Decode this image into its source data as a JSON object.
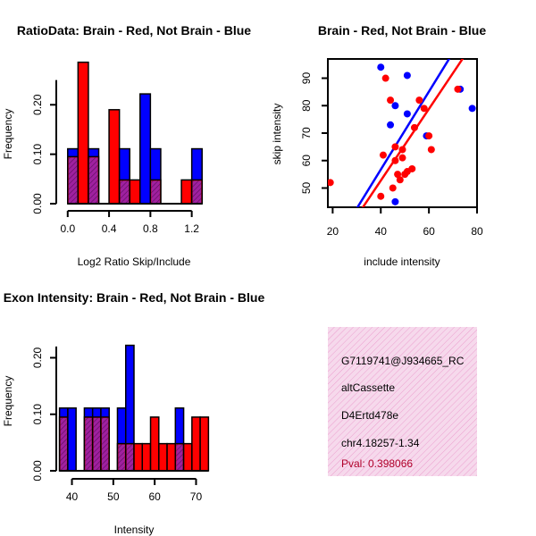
{
  "colors": {
    "red": "#ff0000",
    "blue": "#0000ff",
    "purple": "#a020a0",
    "info_bg": "#f6d9ec",
    "info_hatch": "#ec9fcf",
    "pval": "#b0002a"
  },
  "chart_data": [
    {
      "type": "bar",
      "title": "RatioData: Brain - Red, Not Brain - Blue",
      "xlabel": "Log2 Ratio Skip/Include",
      "ylabel": "Frequency",
      "xlim": [
        -0.05,
        1.35
      ],
      "ylim": [
        0,
        0.28
      ],
      "xticks": [
        0.0,
        0.4,
        0.8,
        1.2
      ],
      "xtick_labels": [
        "0.0",
        "0.4",
        "0.8",
        "1.2"
      ],
      "yticks": [
        0.0,
        0.1,
        0.2
      ],
      "ytick_labels": [
        "0.00",
        "0.10",
        "0.20"
      ],
      "bin_edges": [
        0.0,
        0.1,
        0.2,
        0.3,
        0.4,
        0.5,
        0.6,
        0.7,
        0.8,
        0.9,
        1.0,
        1.1,
        1.2,
        1.3
      ],
      "series": [
        {
          "name": "Not Brain",
          "color": "blue",
          "values": [
            0.111,
            0.0,
            0.111,
            0.0,
            0.0,
            0.111,
            0.0,
            0.222,
            0.111,
            0.0,
            0.0,
            0.0,
            0.111
          ]
        },
        {
          "name": "Brain",
          "color": "red",
          "values": [
            0.095,
            0.286,
            0.095,
            0.0,
            0.19,
            0.048,
            0.048,
            0.0,
            0.048,
            0.0,
            0.0,
            0.048,
            0.048
          ]
        }
      ]
    },
    {
      "type": "scatter",
      "title": "Brain - Red, Not Brain - Blue",
      "xlabel": "include intensity",
      "ylabel": "skip intensity",
      "xlim": [
        18,
        80
      ],
      "ylim": [
        43,
        97
      ],
      "xticks": [
        20,
        40,
        60,
        80
      ],
      "xtick_labels": [
        "20",
        "40",
        "60",
        "80"
      ],
      "yticks": [
        50,
        60,
        70,
        80,
        90
      ],
      "ytick_labels": [
        "50",
        "60",
        "70",
        "80",
        "90"
      ],
      "series": [
        {
          "name": "Not Brain",
          "color": "blue",
          "points": [
            [
              40,
              94
            ],
            [
              51,
              91
            ],
            [
              46,
              80
            ],
            [
              51,
              77
            ],
            [
              44,
              73
            ],
            [
              59,
              69
            ],
            [
              73,
              86
            ],
            [
              78,
              79
            ],
            [
              46,
              45
            ]
          ]
        },
        {
          "name": "Brain",
          "color": "red",
          "points": [
            [
              19,
              52
            ],
            [
              40,
              47
            ],
            [
              45,
              50
            ],
            [
              47,
              55
            ],
            [
              48,
              53
            ],
            [
              50,
              55
            ],
            [
              51,
              56
            ],
            [
              53,
              57
            ],
            [
              49,
              61
            ],
            [
              46,
              60
            ],
            [
              46,
              65
            ],
            [
              49,
              64
            ],
            [
              41,
              62
            ],
            [
              44,
              82
            ],
            [
              54,
              72
            ],
            [
              56,
              82
            ],
            [
              58,
              79
            ],
            [
              60,
              69
            ],
            [
              61,
              64
            ],
            [
              72,
              86
            ],
            [
              42,
              90
            ]
          ]
        }
      ],
      "fit_lines": [
        {
          "name": "Not Brain fit",
          "color": "blue",
          "x": [
            18,
            80
          ],
          "y": [
            25.5,
            113.5
          ]
        },
        {
          "name": "Brain fit",
          "color": "red",
          "x": [
            18,
            80
          ],
          "y": [
            24.0,
            104.9
          ]
        }
      ]
    },
    {
      "type": "bar",
      "title": "Exon Intensity: Brain - Red, Not Brain - Blue",
      "xlabel": "Intensity",
      "ylabel": "Frequency",
      "xlim": [
        36,
        74
      ],
      "ylim": [
        0,
        0.245
      ],
      "xticks": [
        40,
        50,
        60,
        70
      ],
      "xtick_labels": [
        "40",
        "50",
        "60",
        "70"
      ],
      "yticks": [
        0.0,
        0.1,
        0.2
      ],
      "ytick_labels": [
        "0.00",
        "0.10",
        "0.20"
      ],
      "bin_edges": [
        37,
        39,
        41,
        43,
        45,
        47,
        49,
        51,
        53,
        55,
        57,
        59,
        61,
        63,
        65,
        67,
        69,
        71,
        73
      ],
      "series": [
        {
          "name": "Not Brain",
          "color": "blue",
          "values": [
            0.111,
            0.111,
            0.0,
            0.111,
            0.111,
            0.111,
            0.0,
            0.111,
            0.222,
            0.0,
            0.0,
            0.0,
            0.0,
            0.0,
            0.111,
            0.0,
            0.0,
            0.0
          ]
        },
        {
          "name": "Brain",
          "color": "red",
          "values": [
            0.095,
            0.0,
            0.0,
            0.095,
            0.095,
            0.095,
            0.0,
            0.048,
            0.048,
            0.048,
            0.048,
            0.095,
            0.048,
            0.048,
            0.048,
            0.048,
            0.095,
            0.095
          ]
        }
      ]
    }
  ],
  "info_box": {
    "lines": [
      "G7119741@J934665_RC",
      "altCassette",
      "D4Ertd478e",
      "chr4.18257-1.34"
    ],
    "pval": "Pval: 0.398066"
  }
}
